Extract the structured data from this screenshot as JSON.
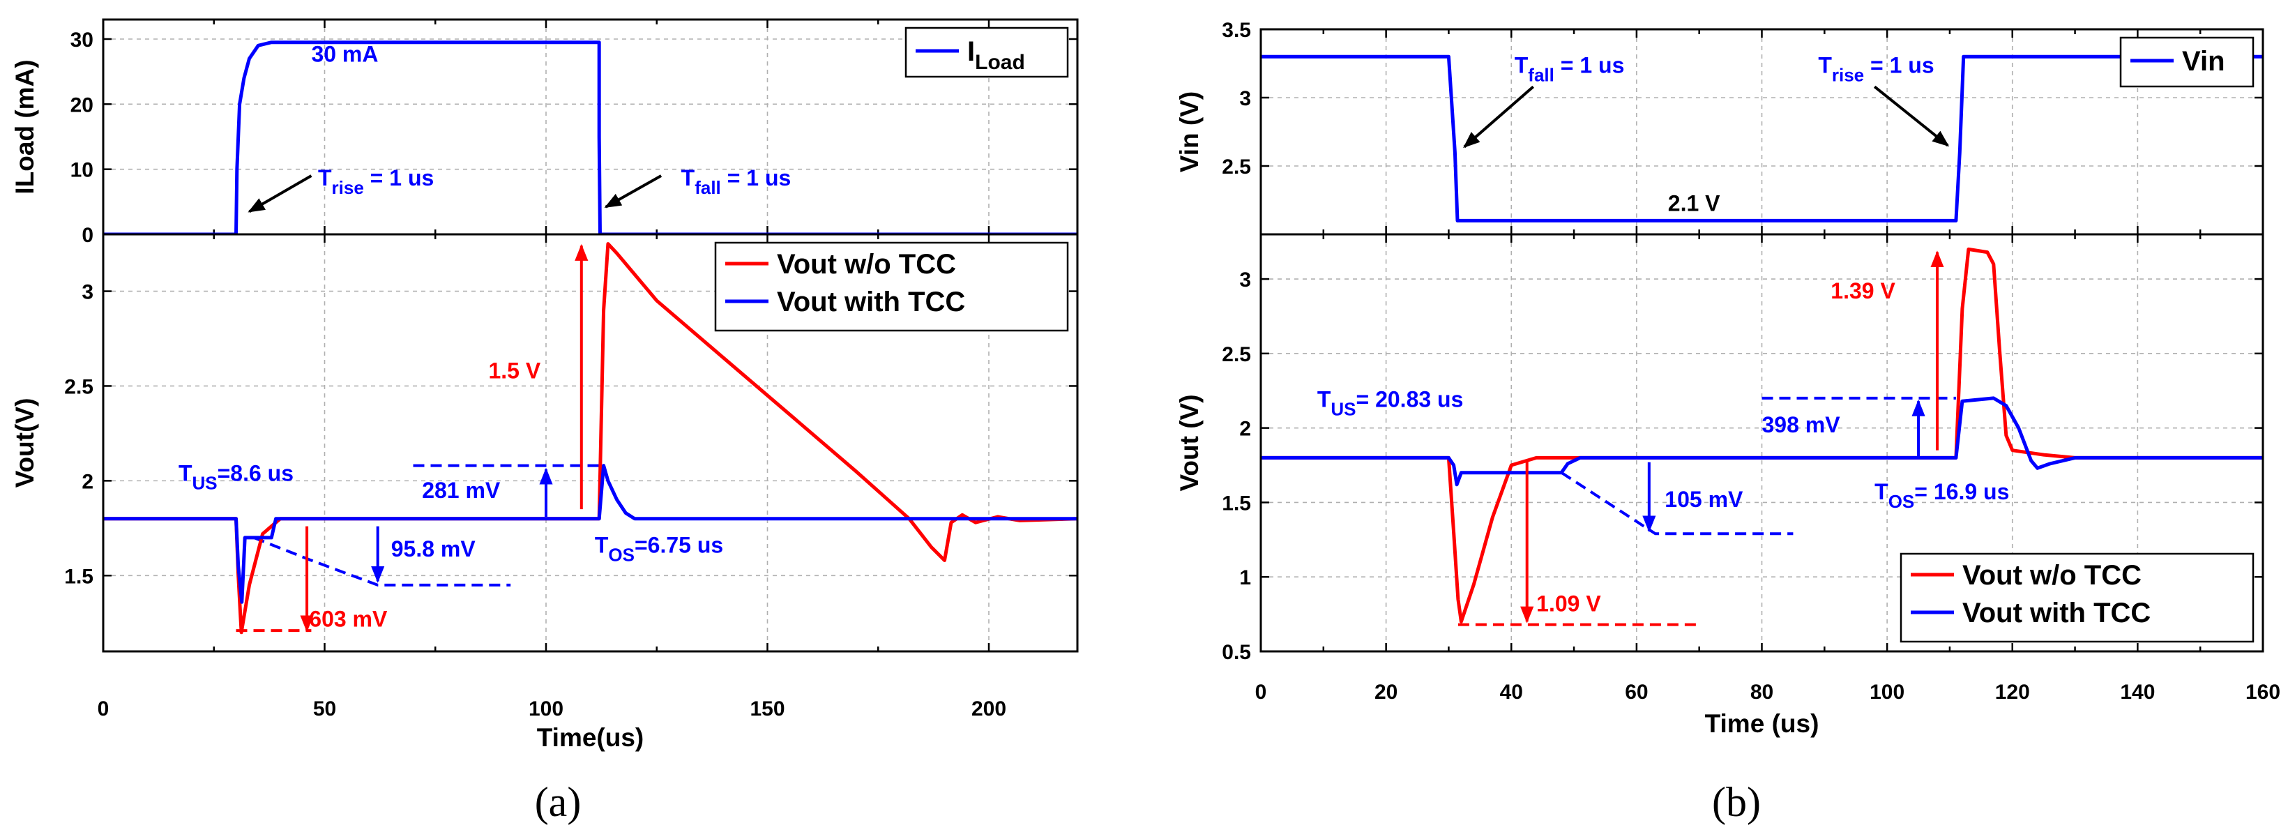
{
  "chart_data": [
    {
      "panel": "a",
      "caption": "(a)",
      "type": "line",
      "xlabel": "Time(us)",
      "xlim": [
        0,
        220
      ],
      "xticks": [
        "0",
        "50",
        "100",
        "150",
        "200"
      ],
      "subplots": [
        {
          "id": "top",
          "ylabel": "ILoad (mA)",
          "ylim": [
            0,
            33
          ],
          "yticks": [
            "0",
            "10",
            "20",
            "30"
          ],
          "legend": {
            "position": "top-right",
            "entries": [
              {
                "name": "I",
                "sub": "Load",
                "color": "#0000ff"
              }
            ]
          },
          "series": [
            {
              "name": "ILoad",
              "color": "#0000ff",
              "points": [
                [
                  0,
                  0
                ],
                [
                  30,
                  0
                ],
                [
                  30.2,
                  10
                ],
                [
                  30.8,
                  20
                ],
                [
                  31.8,
                  24
                ],
                [
                  33,
                  27
                ],
                [
                  35,
                  29
                ],
                [
                  38,
                  29.5
                ],
                [
                  112,
                  29.5
                ],
                [
                  112,
                  15
                ],
                [
                  112.2,
                  0
                ],
                [
                  220,
                  0
                ]
              ]
            }
          ],
          "annotations": [
            {
              "label": "30 mA",
              "color": "#0000ff",
              "x": 47,
              "y": 26.5
            },
            {
              "label": "T",
              "sub": "rise",
              "after": " = 1 us",
              "color": "#0000ff",
              "x": 48.5,
              "y": 7.5
            },
            {
              "label": "T",
              "sub": "fall",
              "after": " = 1 us",
              "color": "#0000ff",
              "x": 130.5,
              "y": 7.5
            }
          ],
          "arrows": [
            {
              "from": [
                47,
                9
              ],
              "to": [
                33,
                3.5
              ],
              "color": "#000000"
            },
            {
              "from": [
                126,
                9
              ],
              "to": [
                113.5,
                4.2
              ],
              "color": "#000000"
            }
          ]
        },
        {
          "id": "bottom",
          "ylabel": "Vout(V)",
          "ylim": [
            1.1,
            3.3
          ],
          "yticks": [
            "1.5",
            "2",
            "2.5",
            "3"
          ],
          "legend": {
            "position": "top-right",
            "entries": [
              {
                "name": "Vout w/o TCC",
                "color": "#ff0000"
              },
              {
                "name": "Vout with TCC",
                "color": "#0000ff"
              }
            ]
          },
          "series": [
            {
              "name": "Vout w/o TCC",
              "color": "#ff0000",
              "points": [
                [
                  0,
                  1.8
                ],
                [
                  30,
                  1.8
                ],
                [
                  30.5,
                  1.5
                ],
                [
                  31.2,
                  1.2
                ],
                [
                  33,
                  1.45
                ],
                [
                  36,
                  1.72
                ],
                [
                  40,
                  1.8
                ],
                [
                  112,
                  1.8
                ],
                [
                  113,
                  2.9
                ],
                [
                  114,
                  3.25
                ],
                [
                  116,
                  3.2
                ],
                [
                  125,
                  2.95
                ],
                [
                  140,
                  2.65
                ],
                [
                  155,
                  2.35
                ],
                [
                  170,
                  2.05
                ],
                [
                  182,
                  1.8
                ],
                [
                  187,
                  1.65
                ],
                [
                  190,
                  1.58
                ],
                [
                  191.5,
                  1.78
                ],
                [
                  194,
                  1.82
                ],
                [
                  197,
                  1.78
                ],
                [
                  202,
                  1.81
                ],
                [
                  207,
                  1.79
                ],
                [
                  220,
                  1.8
                ]
              ]
            },
            {
              "name": "Vout with TCC",
              "color": "#0000ff",
              "points": [
                [
                  0,
                  1.8
                ],
                [
                  30,
                  1.8
                ],
                [
                  30.5,
                  1.55
                ],
                [
                  31.3,
                  1.36
                ],
                [
                  32,
                  1.7
                ],
                [
                  38,
                  1.7
                ],
                [
                  39,
                  1.8
                ],
                [
                  112,
                  1.8
                ],
                [
                  113,
                  2.08
                ],
                [
                  114,
                  2.0
                ],
                [
                  116,
                  1.9
                ],
                [
                  118,
                  1.83
                ],
                [
                  120,
                  1.8
                ],
                [
                  220,
                  1.8
                ]
              ]
            }
          ],
          "guides": [
            {
              "points": [
                [
                  30,
                  1.21
                ],
                [
                  47,
                  1.21
                ]
              ],
              "color": "#ff0000",
              "dashed": true
            },
            {
              "points": [
                [
                  34,
                  1.7
                ],
                [
                  47,
                  1.58
                ],
                [
                  62,
                  1.45
                ],
                [
                  92,
                  1.45
                ]
              ],
              "color": "#0000ff",
              "dashed": true
            },
            {
              "points": [
                [
                  70,
                  2.08
                ],
                [
                  112,
                  2.08
                ]
              ],
              "color": "#0000ff",
              "dashed": true
            }
          ],
          "arrows": [
            {
              "from": [
                46,
                1.76
              ],
              "to": [
                46,
                1.21
              ],
              "color": "#ff0000"
            },
            {
              "from": [
                62,
                1.76
              ],
              "to": [
                62,
                1.47
              ],
              "color": "#0000ff"
            },
            {
              "from": [
                100,
                1.81
              ],
              "to": [
                100,
                2.06
              ],
              "color": "#0000ff"
            },
            {
              "from": [
                108,
                1.85
              ],
              "to": [
                108,
                3.24
              ],
              "color": "#ff0000"
            }
          ],
          "annotations": [
            {
              "label": "T",
              "sub": "US",
              "after": "=8.6 us",
              "color": "#0000ff",
              "x": 17,
              "y": 2.0
            },
            {
              "label": "603 mV",
              "color": "#ff0000",
              "x": 46.5,
              "y": 1.23
            },
            {
              "label": "95.8 mV",
              "color": "#0000ff",
              "x": 65,
              "y": 1.6
            },
            {
              "label": "281 mV",
              "color": "#0000ff",
              "x": 72,
              "y": 1.91
            },
            {
              "label": "1.5 V",
              "color": "#ff0000",
              "x": 87,
              "y": 2.54
            },
            {
              "label": "T",
              "sub": "OS",
              "after": "=6.75 us",
              "color": "#0000ff",
              "x": 111,
              "y": 1.62
            }
          ]
        }
      ]
    },
    {
      "panel": "b",
      "caption": "(b)",
      "type": "line",
      "xlabel": "Time (us)",
      "xlim": [
        0,
        160
      ],
      "xticks": [
        "0",
        "20",
        "40",
        "60",
        "80",
        "100",
        "120",
        "140",
        "160"
      ],
      "subplots": [
        {
          "id": "top",
          "ylabel": "Vin (V)",
          "ylim": [
            2.0,
            3.5
          ],
          "yticks": [
            "2.5",
            "3",
            "3.5"
          ],
          "legend": {
            "position": "top-right",
            "entries": [
              {
                "name": "Vin",
                "color": "#0000ff"
              }
            ]
          },
          "series": [
            {
              "name": "Vin",
              "color": "#0000ff",
              "points": [
                [
                  0,
                  3.3
                ],
                [
                  30,
                  3.3
                ],
                [
                  31,
                  2.6
                ],
                [
                  31.4,
                  2.1
                ],
                [
                  111,
                  2.1
                ],
                [
                  111.6,
                  2.6
                ],
                [
                  112.2,
                  3.3
                ],
                [
                  160,
                  3.3
                ]
              ]
            }
          ],
          "annotations": [
            {
              "label": "T",
              "sub": "fall",
              "after": " = 1 us",
              "color": "#0000ff",
              "x": 40.5,
              "y": 3.18
            },
            {
              "label": "T",
              "sub": "rise",
              "after": " = 1 us",
              "color": "#0000ff",
              "x": 89,
              "y": 3.18
            },
            {
              "label": "2.1 V",
              "color": "#000000",
              "x": 65,
              "y": 2.17
            }
          ],
          "arrows": [
            {
              "from": [
                43.5,
                3.08
              ],
              "to": [
                32.5,
                2.64
              ],
              "color": "#000000"
            },
            {
              "from": [
                98,
                3.08
              ],
              "to": [
                109.7,
                2.65
              ],
              "color": "#000000"
            }
          ]
        },
        {
          "id": "bottom",
          "ylabel": "Vout (V)",
          "ylim": [
            0.5,
            3.3
          ],
          "yticks": [
            "0.5",
            "1",
            "1.5",
            "2",
            "2.5",
            "3"
          ],
          "legend": {
            "position": "bottom-right",
            "entries": [
              {
                "name": "Vout w/o TCC",
                "color": "#ff0000"
              },
              {
                "name": "Vout with TCC",
                "color": "#0000ff"
              }
            ]
          },
          "series": [
            {
              "name": "Vout w/o TCC",
              "color": "#ff0000",
              "points": [
                [
                  0,
                  1.8
                ],
                [
                  30,
                  1.8
                ],
                [
                  30.8,
                  1.3
                ],
                [
                  31.5,
                  0.85
                ],
                [
                  32,
                  0.7
                ],
                [
                  34,
                  0.95
                ],
                [
                  37,
                  1.4
                ],
                [
                  40,
                  1.75
                ],
                [
                  44,
                  1.8
                ],
                [
                  111,
                  1.8
                ],
                [
                  112,
                  2.8
                ],
                [
                  113,
                  3.2
                ],
                [
                  116,
                  3.18
                ],
                [
                  117,
                  3.1
                ],
                [
                  118,
                  2.5
                ],
                [
                  119,
                  1.95
                ],
                [
                  120,
                  1.85
                ],
                [
                  125,
                  1.82
                ],
                [
                  130,
                  1.8
                ],
                [
                  160,
                  1.8
                ]
              ]
            },
            {
              "name": "Vout with TCC",
              "color": "#0000ff",
              "points": [
                [
                  0,
                  1.8
                ],
                [
                  30,
                  1.8
                ],
                [
                  30.8,
                  1.75
                ],
                [
                  31.3,
                  1.62
                ],
                [
                  32,
                  1.7
                ],
                [
                  48,
                  1.7
                ],
                [
                  49,
                  1.76
                ],
                [
                  51,
                  1.8
                ],
                [
                  111,
                  1.8
                ],
                [
                  112,
                  2.18
                ],
                [
                  117,
                  2.2
                ],
                [
                  119,
                  2.15
                ],
                [
                  121,
                  2.0
                ],
                [
                  123,
                  1.78
                ],
                [
                  124,
                  1.73
                ],
                [
                  126,
                  1.76
                ],
                [
                  130,
                  1.8
                ],
                [
                  160,
                  1.8
                ]
              ]
            }
          ],
          "guides": [
            {
              "points": [
                [
                  31.5,
                  0.68
                ],
                [
                  70,
                  0.68
                ]
              ],
              "color": "#ff0000",
              "dashed": true
            },
            {
              "points": [
                [
                  48,
                  1.7
                ],
                [
                  63,
                  1.29
                ],
                [
                  85,
                  1.29
                ]
              ],
              "color": "#0000ff",
              "dashed": true
            },
            {
              "points": [
                [
                  80,
                  2.2
                ],
                [
                  111,
                  2.2
                ]
              ],
              "color": "#0000ff",
              "dashed": true
            }
          ],
          "arrows": [
            {
              "from": [
                42.5,
                1.78
              ],
              "to": [
                42.5,
                0.7
              ],
              "color": "#ff0000"
            },
            {
              "from": [
                62,
                1.77
              ],
              "to": [
                62,
                1.31
              ],
              "color": "#0000ff"
            },
            {
              "from": [
                105,
                1.81
              ],
              "to": [
                105,
                2.18
              ],
              "color": "#0000ff"
            },
            {
              "from": [
                108,
                1.85
              ],
              "to": [
                108,
                3.18
              ],
              "color": "#ff0000"
            }
          ],
          "annotations": [
            {
              "label": "T",
              "sub": "US",
              "after": "= 20.83 us",
              "color": "#0000ff",
              "x": 9,
              "y": 2.14
            },
            {
              "label": "398 mV",
              "color": "#0000ff",
              "x": 80,
              "y": 1.97
            },
            {
              "label": "1.39 V",
              "color": "#ff0000",
              "x": 91,
              "y": 2.87
            },
            {
              "label": "105 mV",
              "color": "#0000ff",
              "x": 64.5,
              "y": 1.47
            },
            {
              "label": "1.09 V",
              "color": "#ff0000",
              "x": 44,
              "y": 0.77
            },
            {
              "label": "T",
              "sub": "OS",
              "after": "= 16.9 us",
              "color": "#0000ff",
              "x": 98,
              "y": 1.52
            }
          ]
        }
      ]
    }
  ]
}
